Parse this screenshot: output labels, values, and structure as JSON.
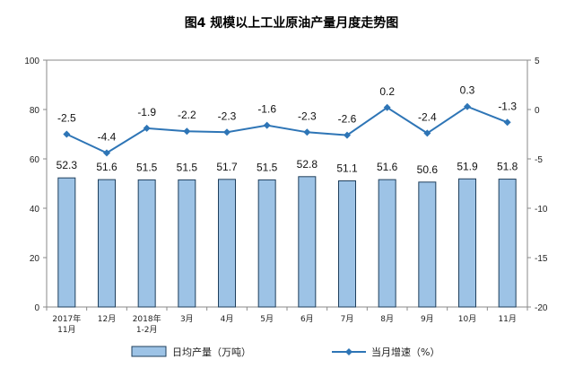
{
  "chart_data": {
    "type": "bar+line",
    "title": "图4  规模以上工业原油产量月度走势图",
    "categories": [
      [
        "2017年",
        "11月"
      ],
      [
        "12月"
      ],
      [
        "2018年",
        "1-2月"
      ],
      [
        "3月"
      ],
      [
        "4月"
      ],
      [
        "5月"
      ],
      [
        "6月"
      ],
      [
        "7月"
      ],
      [
        "8月"
      ],
      [
        "9月"
      ],
      [
        "10月"
      ],
      [
        "11月"
      ]
    ],
    "series": [
      {
        "name": "日均产量（万吨）",
        "type": "bar",
        "axis": "left",
        "color": "#9DC3E6",
        "values": [
          52.3,
          51.6,
          51.5,
          51.5,
          51.7,
          51.5,
          52.8,
          51.1,
          51.6,
          50.6,
          51.9,
          51.8
        ],
        "labels": [
          "52.3",
          "51.6",
          "51.5",
          "51.5",
          "51.7",
          "51.5",
          "52.8",
          "51.1",
          "51.6",
          "50.6",
          "51.9",
          "51.8"
        ]
      },
      {
        "name": "当月增速（%）",
        "type": "line",
        "axis": "right",
        "color": "#2E75B6",
        "values": [
          -2.5,
          -4.4,
          -1.9,
          -2.2,
          -2.3,
          -1.6,
          -2.3,
          -2.6,
          0.2,
          -2.4,
          0.3,
          -1.3
        ],
        "labels": [
          "-2.5",
          "-4.4",
          "-1.9",
          "-2.2",
          "-2.3",
          "-1.6",
          "-2.3",
          "-2.6",
          "0.2",
          "-2.4",
          "0.3",
          "-1.3"
        ]
      }
    ],
    "y_left": {
      "min": 0,
      "max": 100,
      "ticks": [
        "0",
        "20",
        "40",
        "60",
        "80",
        "100"
      ]
    },
    "y_right": {
      "min": -20,
      "max": 5,
      "ticks": [
        "-20",
        "-15",
        "-10",
        "-5",
        "0",
        "5"
      ]
    },
    "grid": false,
    "legend_position": "bottom"
  }
}
